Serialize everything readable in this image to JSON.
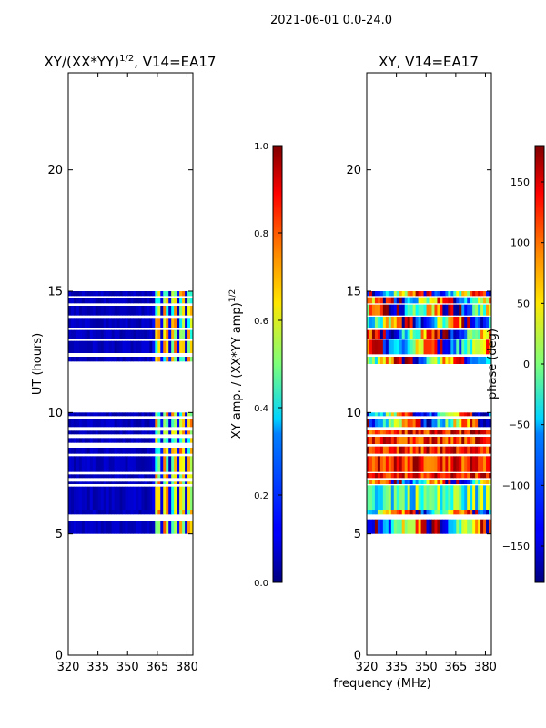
{
  "suptitle": "2021-06-01 0.0-24.0",
  "shared_xlabel": "frequency (MHz)",
  "chart_data": [
    {
      "type": "heatmap",
      "title_main": "XY/(XX*YY)",
      "title_sup": "1/2",
      "title_tail": ", V14=EA17",
      "xlabel": "",
      "ylabel": "UT (hours)",
      "xlim": [
        320,
        383
      ],
      "ylim": [
        0,
        24
      ],
      "xticks": [
        320,
        335,
        350,
        365,
        380
      ],
      "yticks": [
        0,
        5,
        10,
        15,
        20
      ],
      "rows": [
        {
          "t0": 5.0,
          "t1": 5.55
        },
        {
          "t0": 5.8,
          "t1": 6.0
        },
        {
          "t0": 6.0,
          "t1": 6.95
        },
        {
          "t0": 7.05,
          "t1": 7.15
        },
        {
          "t0": 7.3,
          "t1": 7.45
        },
        {
          "t0": 7.55,
          "t1": 8.2
        },
        {
          "t0": 8.3,
          "t1": 8.55
        },
        {
          "t0": 8.75,
          "t1": 8.95
        },
        {
          "t0": 9.1,
          "t1": 9.25
        },
        {
          "t0": 9.4,
          "t1": 9.75
        },
        {
          "t0": 9.85,
          "t1": 10.0
        },
        {
          "t0": 12.1,
          "t1": 12.3
        },
        {
          "t0": 12.45,
          "t1": 12.95
        },
        {
          "t0": 13.05,
          "t1": 13.4
        },
        {
          "t0": 13.5,
          "t1": 13.9
        },
        {
          "t0": 14.0,
          "t1": 14.4
        },
        {
          "t0": 14.5,
          "t1": 14.7
        },
        {
          "t0": 14.8,
          "t1": 15.0
        }
      ],
      "colorbar": {
        "label_main": "XY amp. / (XX*YY amp)",
        "label_sup": "1/2",
        "ticks": [
          "0.0",
          "0.2",
          "0.4",
          "0.6",
          "0.8",
          "1.0"
        ],
        "range": [
          0,
          1
        ]
      }
    },
    {
      "type": "heatmap",
      "title_main": "XY, V14=EA17",
      "title_sup": "",
      "title_tail": "",
      "xlabel": "frequency (MHz)",
      "ylabel": "",
      "xlim": [
        320,
        383
      ],
      "ylim": [
        0,
        24
      ],
      "xticks": [
        320,
        335,
        350,
        365,
        380
      ],
      "yticks": [
        0,
        5,
        10,
        15,
        20
      ],
      "rows": [
        {
          "t0": 5.0,
          "t1": 5.6
        },
        {
          "t0": 5.8,
          "t1": 6.0
        },
        {
          "t0": 6.0,
          "t1": 7.0
        },
        {
          "t0": 7.05,
          "t1": 7.2
        },
        {
          "t0": 7.3,
          "t1": 7.5
        },
        {
          "t0": 7.55,
          "t1": 8.2
        },
        {
          "t0": 8.3,
          "t1": 8.6
        },
        {
          "t0": 8.7,
          "t1": 9.0
        },
        {
          "t0": 9.1,
          "t1": 9.3
        },
        {
          "t0": 9.4,
          "t1": 9.75
        },
        {
          "t0": 9.85,
          "t1": 10.0
        },
        {
          "t0": 12.0,
          "t1": 12.3
        },
        {
          "t0": 12.4,
          "t1": 13.0
        },
        {
          "t0": 13.05,
          "t1": 13.4
        },
        {
          "t0": 13.5,
          "t1": 13.95
        },
        {
          "t0": 14.0,
          "t1": 14.45
        },
        {
          "t0": 14.5,
          "t1": 14.75
        },
        {
          "t0": 14.8,
          "t1": 15.0
        }
      ],
      "colorbar": {
        "label_main": "phase (deg)",
        "label_sup": "",
        "ticks": [
          "−150",
          "−100",
          "−50",
          "0",
          "50",
          "100",
          "150"
        ],
        "range": [
          -180,
          180
        ]
      }
    }
  ]
}
